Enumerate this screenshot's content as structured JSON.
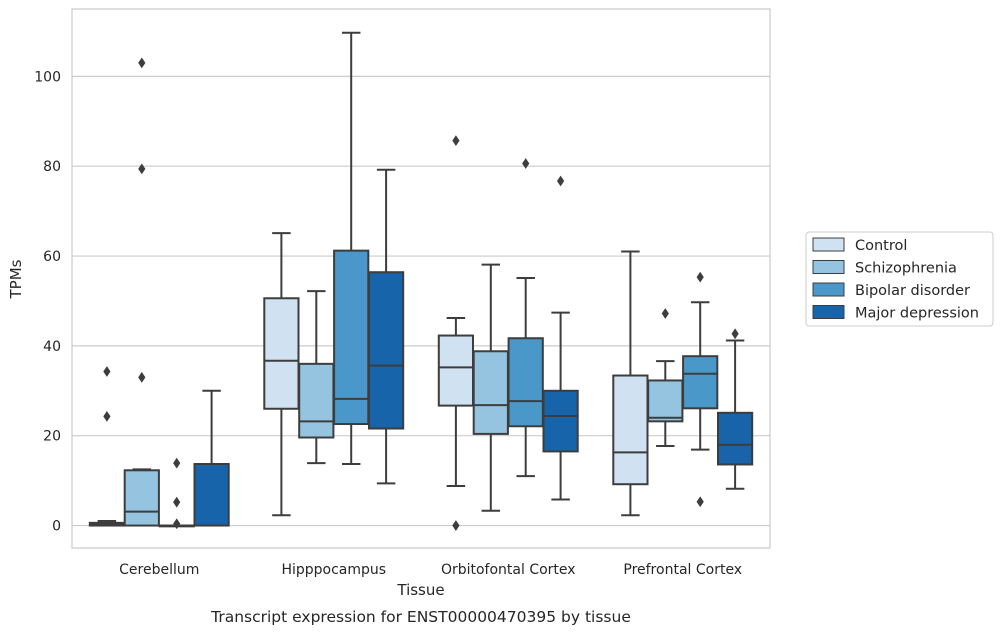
{
  "chart_data": {
    "type": "box",
    "title": "Transcript expression for ENST00000470395 by tissue",
    "xlabel": "Tissue",
    "ylabel": "TPMs",
    "ylim": [
      -5,
      115
    ],
    "yticks": [
      0,
      20,
      40,
      60,
      80,
      100
    ],
    "grid": "horizontal",
    "legend_position": "right",
    "categories": [
      "Cerebellum",
      "Hipppocampus",
      "Orbitofontal Cortex",
      "Prefrontal Cortex"
    ],
    "series": [
      {
        "name": "Control",
        "color": "#d0e1f2",
        "boxes": [
          {
            "whisker_low": 0,
            "q1": 0,
            "median": 0.3,
            "q3": 0.6,
            "whisker_high": 1.0,
            "outliers": [
              24.3,
              34.3
            ]
          },
          {
            "whisker_low": 2.3,
            "q1": 26,
            "median": 36.7,
            "q3": 50.6,
            "whisker_high": 65.1,
            "outliers": []
          },
          {
            "whisker_low": 8.8,
            "q1": 26.7,
            "median": 35.2,
            "q3": 42.3,
            "whisker_high": 46.2,
            "outliers": [
              0,
              85.7
            ]
          },
          {
            "whisker_low": 2.3,
            "q1": 9.2,
            "median": 16.3,
            "q3": 33.4,
            "whisker_high": 61.0,
            "outliers": []
          }
        ]
      },
      {
        "name": "Schizophrenia",
        "color": "#94c4df",
        "boxes": [
          {
            "whisker_low": 0,
            "q1": 0,
            "median": 3.1,
            "q3": 12.3,
            "whisker_high": 12.5,
            "outliers": [
              33.0,
              79.4,
              103.0
            ]
          },
          {
            "whisker_low": 13.9,
            "q1": 19.6,
            "median": 23.2,
            "q3": 36.0,
            "whisker_high": 52.2,
            "outliers": []
          },
          {
            "whisker_low": 3.3,
            "q1": 20.4,
            "median": 26.8,
            "q3": 38.8,
            "whisker_high": 58.1,
            "outliers": []
          },
          {
            "whisker_low": 17.7,
            "q1": 23.2,
            "median": 24.0,
            "q3": 32.3,
            "whisker_high": 36.6,
            "outliers": [
              47.2
            ]
          }
        ]
      },
      {
        "name": "Bipolar disorder",
        "color": "#4a98c9",
        "boxes": [
          {
            "whisker_low": 0,
            "q1": 0,
            "median": 0,
            "q3": 0,
            "whisker_high": 0,
            "outliers": [
              0.4,
              5.2,
              13.9
            ]
          },
          {
            "whisker_low": 13.7,
            "q1": 22.6,
            "median": 28.2,
            "q3": 61.2,
            "whisker_high": 109.7,
            "outliers": []
          },
          {
            "whisker_low": 11.0,
            "q1": 22.1,
            "median": 27.7,
            "q3": 41.7,
            "whisker_high": 55.1,
            "outliers": [
              80.6
            ]
          },
          {
            "whisker_low": 16.9,
            "q1": 26.1,
            "median": 33.8,
            "q3": 37.7,
            "whisker_high": 49.7,
            "outliers": [
              5.3,
              55.3
            ]
          }
        ]
      },
      {
        "name": "Major depression",
        "color": "#1764ab",
        "boxes": [
          {
            "whisker_low": 0,
            "q1": 0,
            "median": 0,
            "q3": 13.7,
            "whisker_high": 30.0,
            "outliers": []
          },
          {
            "whisker_low": 9.4,
            "q1": 21.6,
            "median": 35.6,
            "q3": 56.4,
            "whisker_high": 79.2,
            "outliers": []
          },
          {
            "whisker_low": 5.8,
            "q1": 16.5,
            "median": 24.4,
            "q3": 30.0,
            "whisker_high": 47.4,
            "outliers": [
              76.7
            ]
          },
          {
            "whisker_low": 8.2,
            "q1": 13.6,
            "median": 18.0,
            "q3": 25.1,
            "whisker_high": 41.2,
            "outliers": [
              42.7
            ]
          }
        ]
      }
    ]
  }
}
